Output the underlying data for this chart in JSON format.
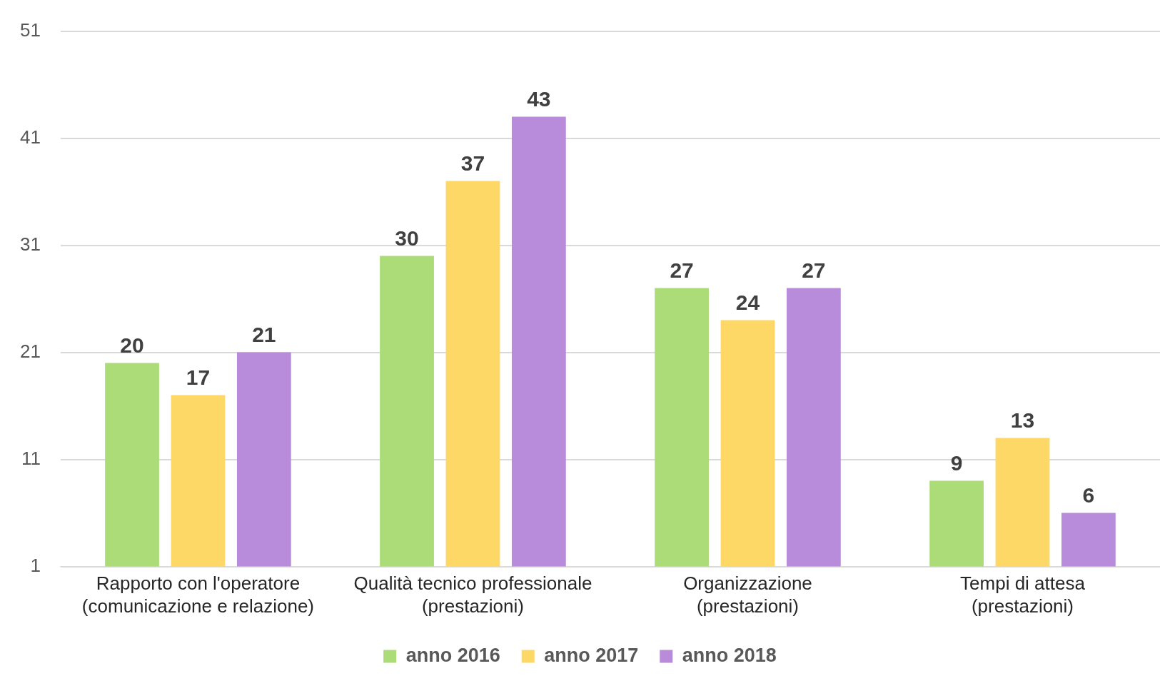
{
  "chart_data": {
    "type": "bar",
    "categories": [
      "Rapporto con l'operatore (comunicazione e relazione)",
      "Qualità tecnico professionale (prestazioni)",
      "Organizzazione (prestazioni)",
      "Tempi di attesa (prestazioni)"
    ],
    "series": [
      {
        "name": "anno 2016",
        "color": "#abdc77",
        "values": [
          20,
          30,
          27,
          9
        ]
      },
      {
        "name": "anno 2017",
        "color": "#fdd867",
        "values": [
          17,
          37,
          24,
          13
        ]
      },
      {
        "name": "anno 2018",
        "color": "#b98bdb",
        "values": [
          21,
          43,
          27,
          6
        ]
      }
    ],
    "ylim": [
      1,
      51
    ],
    "yticks": [
      1,
      11,
      21,
      31,
      41,
      51
    ],
    "grid": "y",
    "legend": "bottom",
    "data_labels": true
  }
}
